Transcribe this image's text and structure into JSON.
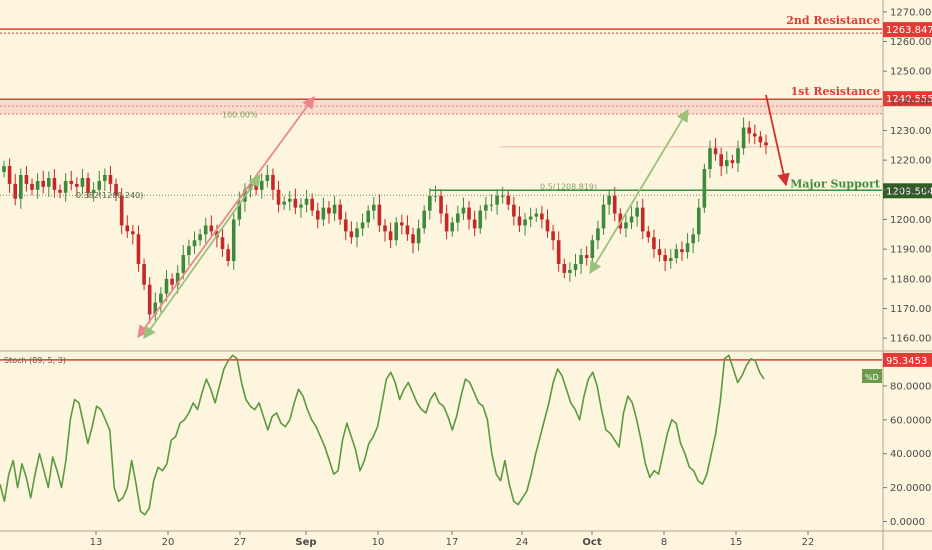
{
  "chart_data": {
    "type": "candlestick",
    "price_panel": {
      "ylim": [
        1156,
        1274
      ],
      "y_ticks": [
        1160,
        1170,
        1180,
        1190,
        1200,
        1210,
        1220,
        1230,
        1240,
        1250,
        1260,
        1270
      ],
      "y_tick_labels": [
        "1160.000",
        "1170.000",
        "1180.000",
        "1190.000",
        "1200.000",
        "1210.000",
        "1220.000",
        "1230.000",
        "1240.000",
        "1250.000",
        "1260.000",
        "1270.000"
      ],
      "closes": [
        1218,
        1212,
        1207,
        1215,
        1212,
        1210,
        1213,
        1211,
        1214,
        1210,
        1209,
        1213,
        1212,
        1211,
        1214,
        1209,
        1210,
        1213,
        1215,
        1212,
        1208,
        1198,
        1196,
        1195,
        1185,
        1178,
        1168,
        1172,
        1175,
        1180,
        1178,
        1182,
        1188,
        1191,
        1193,
        1195,
        1198,
        1196,
        1194,
        1190,
        1186,
        1200,
        1206,
        1210,
        1212,
        1210,
        1213,
        1215,
        1210,
        1205,
        1206,
        1207,
        1204,
        1205,
        1207,
        1203,
        1200,
        1204,
        1202,
        1205,
        1200,
        1196,
        1194,
        1197,
        1199,
        1203,
        1205,
        1198,
        1196,
        1193,
        1199,
        1198,
        1195,
        1192,
        1197,
        1203,
        1208,
        1208,
        1202,
        1196,
        1199,
        1202,
        1204,
        1200,
        1197,
        1203,
        1205,
        1205,
        1208,
        1208,
        1205,
        1201,
        1198,
        1200,
        1201,
        1202,
        1200,
        1196,
        1193,
        1185,
        1182,
        1183,
        1185,
        1188,
        1187,
        1193,
        1197,
        1205,
        1208,
        1202,
        1197,
        1199,
        1201,
        1204,
        1196,
        1194,
        1190,
        1188,
        1186,
        1187,
        1190,
        1189,
        1192,
        1195,
        1204,
        1217,
        1224,
        1222,
        1218,
        1220,
        1219,
        1224,
        1231,
        1229,
        1228,
        1226,
        1225
      ],
      "levels": [
        {
          "name": "2nd Resistance",
          "value": 1263.847,
          "label": "1263.847"
        },
        {
          "name": "1st Resistance",
          "value": 1240.555,
          "label": "1240.555"
        },
        {
          "name": "Major Support",
          "value": 1209.504,
          "label": "1209.504"
        }
      ],
      "annotations": [
        {
          "text": "100.00%"
        },
        {
          "text": "0.382(1208.240)"
        },
        {
          "text": "0.5(1208.819)"
        }
      ]
    },
    "stoch_panel": {
      "title": "Stoch (89, 5, 3)",
      "ylim": [
        -5,
        100
      ],
      "y_ticks": [
        0,
        20,
        40,
        60,
        80
      ],
      "y_tick_labels": [
        "0.0000",
        "20.0000",
        "40.0000",
        "60.0000",
        "80.0000"
      ],
      "level": {
        "value": 95.3453,
        "label": "95.3453"
      },
      "legend": "%D",
      "values": [
        22,
        12,
        28,
        36,
        20,
        34,
        26,
        14,
        28,
        40,
        30,
        20,
        38,
        30,
        20,
        36,
        60,
        72,
        70,
        58,
        46,
        56,
        68,
        66,
        60,
        54,
        20,
        12,
        14,
        20,
        36,
        22,
        6,
        4,
        8,
        24,
        32,
        30,
        34,
        48,
        50,
        58,
        60,
        64,
        70,
        66,
        76,
        84,
        78,
        70,
        80,
        90,
        95,
        98,
        96,
        82,
        72,
        68,
        66,
        70,
        62,
        54,
        62,
        64,
        58,
        56,
        60,
        70,
        78,
        74,
        66,
        60,
        56,
        50,
        44,
        36,
        28,
        30,
        48,
        58,
        50,
        42,
        30,
        36,
        46,
        50,
        56,
        70,
        84,
        88,
        82,
        72,
        78,
        82,
        76,
        70,
        66,
        64,
        72,
        76,
        70,
        68,
        62,
        54,
        62,
        74,
        84,
        82,
        76,
        70,
        68,
        60,
        40,
        28,
        24,
        36,
        22,
        12,
        10,
        14,
        18,
        28,
        40,
        50,
        60,
        70,
        82,
        90,
        86,
        78,
        70,
        66,
        60,
        74,
        84,
        88,
        80,
        66,
        54,
        52,
        48,
        44,
        64,
        74,
        70,
        60,
        48,
        34,
        26,
        30,
        28,
        40,
        52,
        60,
        58,
        46,
        40,
        32,
        30,
        24,
        22,
        28,
        40,
        52,
        70,
        96,
        98,
        90,
        82,
        86,
        92,
        96,
        95,
        88,
        84
      ]
    },
    "x_ticks": [
      "13",
      "20",
      "27",
      "Sep",
      "10",
      "17",
      "24",
      "Oct",
      "8",
      "15",
      "22"
    ]
  },
  "colors": {
    "background": "#fdf5de",
    "up": "#3d8a3d",
    "down": "#c62828",
    "resistance": "#e53935",
    "support": "#3e8e3e",
    "stoch_line": "#5a9a3f",
    "arrow_red": "#e88a8a",
    "arrow_green": "#9ac27b"
  }
}
